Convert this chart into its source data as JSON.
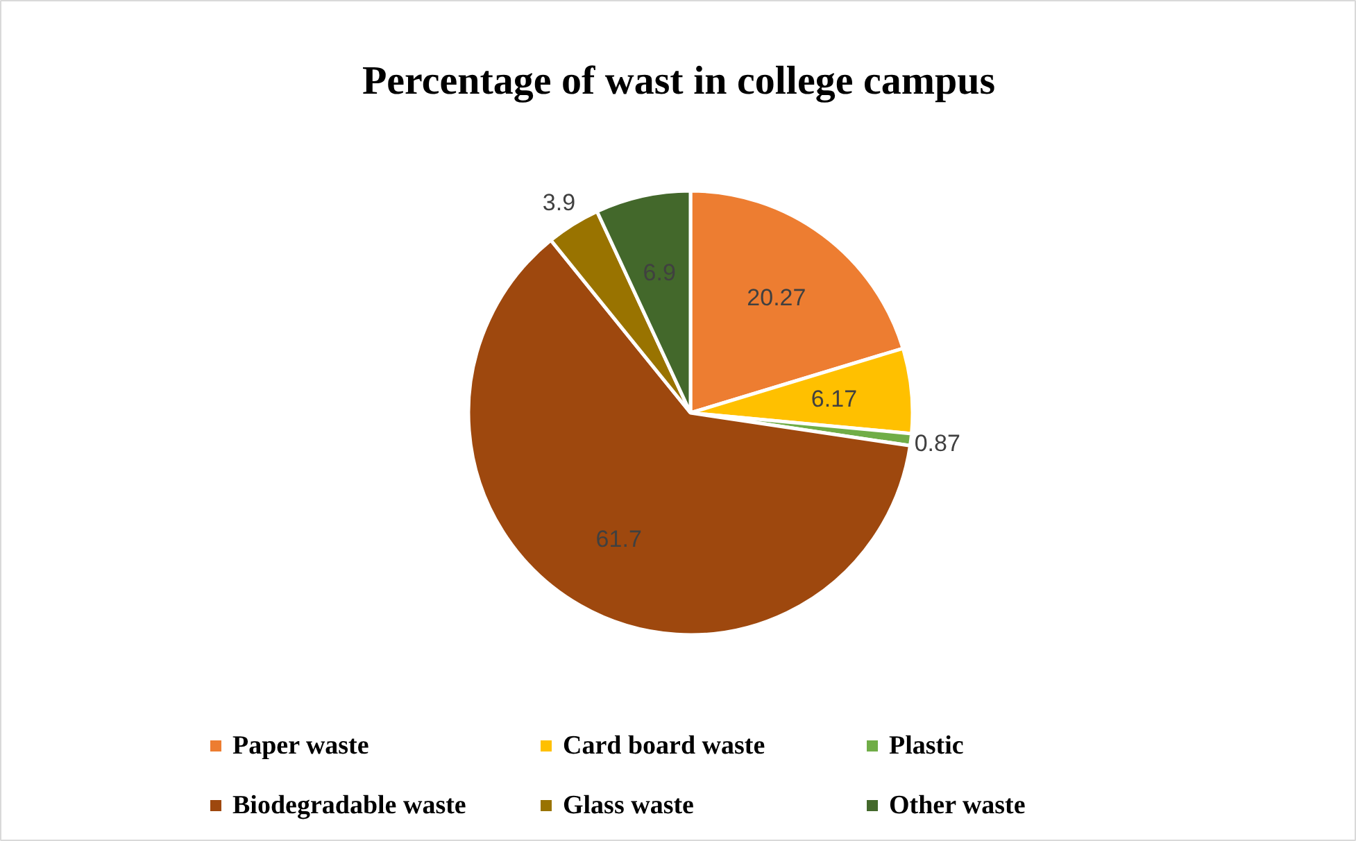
{
  "chart_data": {
    "type": "pie",
    "title": "Percentage of wast in college campus",
    "categories": [
      "Paper waste",
      "Card board waste",
      "Plastic",
      "Biodegradable waste",
      "Glass waste",
      "Other waste"
    ],
    "values": [
      20.27,
      6.17,
      0.87,
      61.7,
      3.9,
      6.9
    ],
    "colors": [
      "#ed7d31",
      "#ffc000",
      "#70ad47",
      "#9e480e",
      "#997300",
      "#43682b"
    ],
    "data_labels": true,
    "legend": "bottom"
  }
}
